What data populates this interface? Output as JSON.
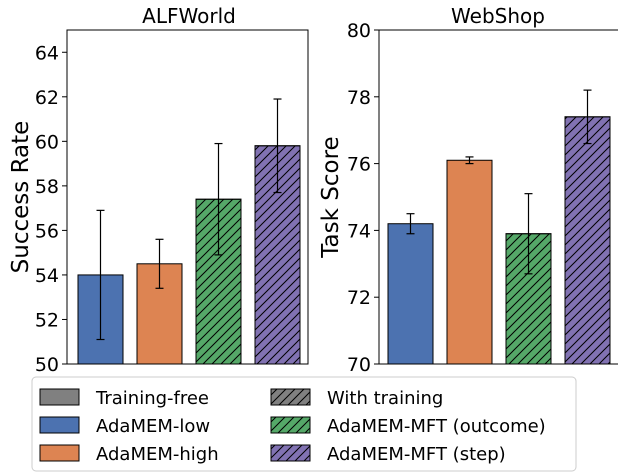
{
  "chart_data": [
    {
      "type": "bar",
      "title": "ALFWorld",
      "ylabel": "Success Rate",
      "xlabel": "",
      "ylim": [
        50,
        65
      ],
      "yticks": [
        50,
        52,
        54,
        56,
        58,
        60,
        62,
        64
      ],
      "grid": false,
      "categories": [
        "AdaMEM-low",
        "AdaMEM-high",
        "AdaMEM-MFT (outcome)",
        "AdaMEM-MFT (step)"
      ],
      "values": [
        54.0,
        54.5,
        57.4,
        59.8
      ],
      "errors": [
        2.9,
        1.1,
        2.5,
        2.1
      ]
    },
    {
      "type": "bar",
      "title": "WebShop",
      "ylabel": "Task Score",
      "xlabel": "",
      "ylim": [
        70,
        80
      ],
      "yticks": [
        70,
        72,
        74,
        76,
        78,
        80
      ],
      "grid": false,
      "categories": [
        "AdaMEM-low",
        "AdaMEM-high",
        "AdaMEM-MFT (outcome)",
        "AdaMEM-MFT (step)"
      ],
      "values": [
        74.2,
        76.1,
        73.9,
        77.4
      ],
      "errors": [
        0.3,
        0.1,
        1.2,
        0.8
      ]
    }
  ],
  "legend": {
    "placement": "bottom",
    "items": [
      {
        "label": "Training-free",
        "color": "#808080",
        "hatch": false
      },
      {
        "label": "With training",
        "color": "#808080",
        "hatch": true
      },
      {
        "label": "AdaMEM-low",
        "color": "#4c72b0",
        "hatch": false
      },
      {
        "label": "AdaMEM-MFT (outcome)",
        "color": "#55a868",
        "hatch": true
      },
      {
        "label": "AdaMEM-high",
        "color": "#dd8452",
        "hatch": false
      },
      {
        "label": "AdaMEM-MFT (step)",
        "color": "#8172b2",
        "hatch": true
      }
    ]
  },
  "series_colors": [
    "#4c72b0",
    "#dd8452",
    "#55a868",
    "#8172b2"
  ],
  "series_hatch": [
    false,
    false,
    true,
    true
  ]
}
